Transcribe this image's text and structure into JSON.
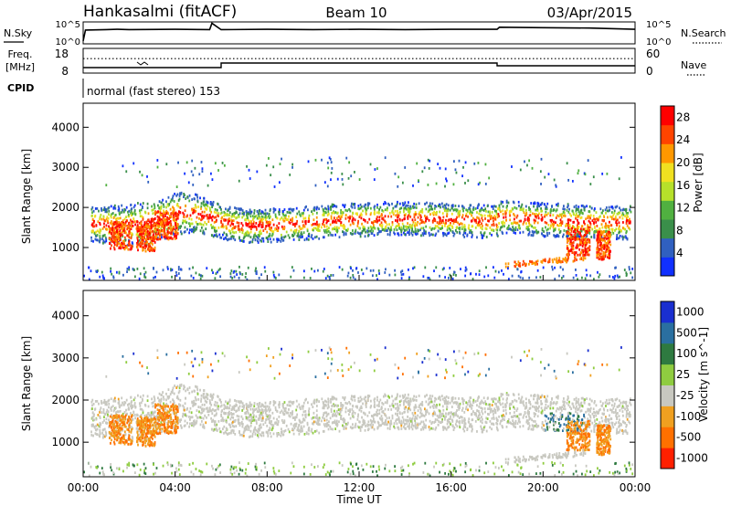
{
  "header": {
    "title": "Hankasalmi (fitACF)",
    "beam": "Beam 10",
    "date": "03/Apr/2015"
  },
  "left_labels": {
    "nsky": "N.Sky",
    "freq_line1": "Freq.",
    "freq_line2": "[MHz]",
    "cpid": "CPID"
  },
  "right_labels": {
    "nsearch": "N.Search",
    "nave": "Nave"
  },
  "cpid_text": "normal (fast stereo) 153",
  "chart_data": [
    {
      "type": "line",
      "name": "noise-panel",
      "left_ticks": [
        "10^5",
        "10^0"
      ],
      "right_ticks": [
        "10^5",
        "10^0"
      ],
      "series": [
        {
          "name": "N.Sky",
          "x_hours": [
            0,
            0.1,
            1,
            1.5,
            2,
            4,
            5.5,
            5.6,
            6,
            8,
            10,
            12,
            14,
            16,
            18,
            18.1,
            20,
            22,
            24
          ],
          "log10_values": [
            0.5,
            3.2,
            3.3,
            3.4,
            3.3,
            3.4,
            3.3,
            4.9,
            3.3,
            3.4,
            3.3,
            3.4,
            3.3,
            3.4,
            3.4,
            3.9,
            3.8,
            3.7,
            3.4
          ]
        }
      ]
    },
    {
      "type": "line",
      "name": "freq-nave-panel",
      "left_ticks": [
        "18",
        "8"
      ],
      "right_ticks": [
        "60",
        "0"
      ],
      "series": [
        {
          "name": "Freq",
          "x_hours": [
            0,
            6,
            6,
            18,
            18,
            24
          ],
          "values_mhz": [
            9.5,
            9.5,
            12.0,
            12.0,
            10.5,
            10.5
          ]
        },
        {
          "name": "Nave",
          "x_hours": [
            0,
            24
          ],
          "values": [
            37,
            37
          ]
        }
      ]
    },
    {
      "type": "heatmap",
      "name": "power",
      "xlabel": "",
      "ylabel": "Slant Range [km]",
      "xlim": [
        0,
        24
      ],
      "ylim": [
        180,
        4600
      ],
      "y_ticks": [
        1000,
        2000,
        3000,
        4000
      ],
      "colorbar_label": "Power [dB]",
      "colorbar_ticks": [
        4,
        8,
        12,
        16,
        20,
        24,
        28
      ],
      "colorbar_range": [
        0,
        30
      ],
      "colors": [
        "#1030ff",
        "#3060c0",
        "#3a8f4a",
        "#50b040",
        "#b6e02a",
        "#f0e020",
        "#ff9800",
        "#ff4400",
        "#ff0000"
      ]
    },
    {
      "type": "heatmap",
      "name": "velocity",
      "xlabel": "Time UT",
      "ylabel": "Slant Range [km]",
      "xlim": [
        0,
        24
      ],
      "ylim": [
        180,
        4600
      ],
      "x_ticks": [
        "00:00",
        "04:00",
        "08:00",
        "12:00",
        "16:00",
        "20:00",
        "00:00"
      ],
      "y_ticks": [
        1000,
        2000,
        3000,
        4000
      ],
      "colorbar_label": "Velocity [m s^-1]",
      "colorbar_ticks": [
        "1000",
        "500",
        "100",
        "25",
        "-25",
        "-100",
        "-500",
        "-1000"
      ],
      "colors": [
        "#1a2fd0",
        "#2a6fa0",
        "#2e7a40",
        "#8fcc40",
        "#c8c8c0",
        "#f0a020",
        "#ff7000",
        "#ff2000"
      ]
    }
  ]
}
